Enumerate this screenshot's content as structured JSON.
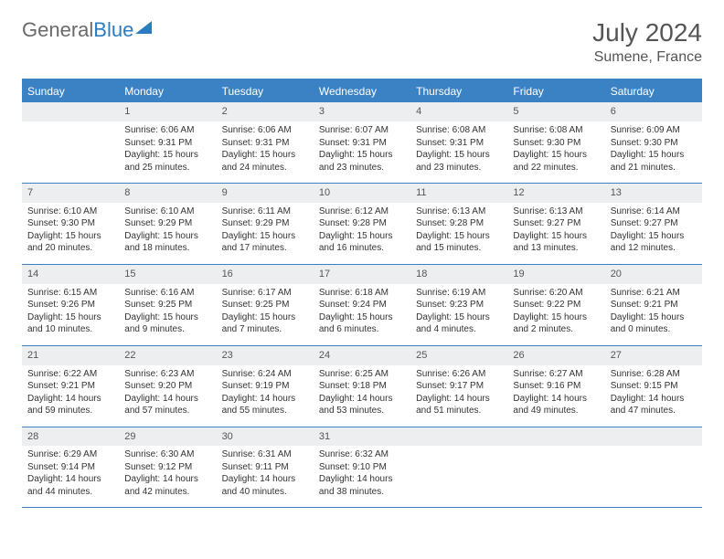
{
  "brand": {
    "part1": "General",
    "part2": "Blue"
  },
  "title": "July 2024",
  "location": "Sumene, France",
  "dayHeaders": [
    "Sunday",
    "Monday",
    "Tuesday",
    "Wednesday",
    "Thursday",
    "Friday",
    "Saturday"
  ],
  "colors": {
    "accent": "#3b82c4",
    "headerBg": "#3b82c4",
    "dayStrip": "#eceef0",
    "text": "#333333",
    "titleText": "#555555"
  },
  "weeks": [
    [
      {
        "n": "",
        "sr": "",
        "ss": "",
        "dl": ""
      },
      {
        "n": "1",
        "sr": "Sunrise: 6:06 AM",
        "ss": "Sunset: 9:31 PM",
        "dl": "Daylight: 15 hours and 25 minutes."
      },
      {
        "n": "2",
        "sr": "Sunrise: 6:06 AM",
        "ss": "Sunset: 9:31 PM",
        "dl": "Daylight: 15 hours and 24 minutes."
      },
      {
        "n": "3",
        "sr": "Sunrise: 6:07 AM",
        "ss": "Sunset: 9:31 PM",
        "dl": "Daylight: 15 hours and 23 minutes."
      },
      {
        "n": "4",
        "sr": "Sunrise: 6:08 AM",
        "ss": "Sunset: 9:31 PM",
        "dl": "Daylight: 15 hours and 23 minutes."
      },
      {
        "n": "5",
        "sr": "Sunrise: 6:08 AM",
        "ss": "Sunset: 9:30 PM",
        "dl": "Daylight: 15 hours and 22 minutes."
      },
      {
        "n": "6",
        "sr": "Sunrise: 6:09 AM",
        "ss": "Sunset: 9:30 PM",
        "dl": "Daylight: 15 hours and 21 minutes."
      }
    ],
    [
      {
        "n": "7",
        "sr": "Sunrise: 6:10 AM",
        "ss": "Sunset: 9:30 PM",
        "dl": "Daylight: 15 hours and 20 minutes."
      },
      {
        "n": "8",
        "sr": "Sunrise: 6:10 AM",
        "ss": "Sunset: 9:29 PM",
        "dl": "Daylight: 15 hours and 18 minutes."
      },
      {
        "n": "9",
        "sr": "Sunrise: 6:11 AM",
        "ss": "Sunset: 9:29 PM",
        "dl": "Daylight: 15 hours and 17 minutes."
      },
      {
        "n": "10",
        "sr": "Sunrise: 6:12 AM",
        "ss": "Sunset: 9:28 PM",
        "dl": "Daylight: 15 hours and 16 minutes."
      },
      {
        "n": "11",
        "sr": "Sunrise: 6:13 AM",
        "ss": "Sunset: 9:28 PM",
        "dl": "Daylight: 15 hours and 15 minutes."
      },
      {
        "n": "12",
        "sr": "Sunrise: 6:13 AM",
        "ss": "Sunset: 9:27 PM",
        "dl": "Daylight: 15 hours and 13 minutes."
      },
      {
        "n": "13",
        "sr": "Sunrise: 6:14 AM",
        "ss": "Sunset: 9:27 PM",
        "dl": "Daylight: 15 hours and 12 minutes."
      }
    ],
    [
      {
        "n": "14",
        "sr": "Sunrise: 6:15 AM",
        "ss": "Sunset: 9:26 PM",
        "dl": "Daylight: 15 hours and 10 minutes."
      },
      {
        "n": "15",
        "sr": "Sunrise: 6:16 AM",
        "ss": "Sunset: 9:25 PM",
        "dl": "Daylight: 15 hours and 9 minutes."
      },
      {
        "n": "16",
        "sr": "Sunrise: 6:17 AM",
        "ss": "Sunset: 9:25 PM",
        "dl": "Daylight: 15 hours and 7 minutes."
      },
      {
        "n": "17",
        "sr": "Sunrise: 6:18 AM",
        "ss": "Sunset: 9:24 PM",
        "dl": "Daylight: 15 hours and 6 minutes."
      },
      {
        "n": "18",
        "sr": "Sunrise: 6:19 AM",
        "ss": "Sunset: 9:23 PM",
        "dl": "Daylight: 15 hours and 4 minutes."
      },
      {
        "n": "19",
        "sr": "Sunrise: 6:20 AM",
        "ss": "Sunset: 9:22 PM",
        "dl": "Daylight: 15 hours and 2 minutes."
      },
      {
        "n": "20",
        "sr": "Sunrise: 6:21 AM",
        "ss": "Sunset: 9:21 PM",
        "dl": "Daylight: 15 hours and 0 minutes."
      }
    ],
    [
      {
        "n": "21",
        "sr": "Sunrise: 6:22 AM",
        "ss": "Sunset: 9:21 PM",
        "dl": "Daylight: 14 hours and 59 minutes."
      },
      {
        "n": "22",
        "sr": "Sunrise: 6:23 AM",
        "ss": "Sunset: 9:20 PM",
        "dl": "Daylight: 14 hours and 57 minutes."
      },
      {
        "n": "23",
        "sr": "Sunrise: 6:24 AM",
        "ss": "Sunset: 9:19 PM",
        "dl": "Daylight: 14 hours and 55 minutes."
      },
      {
        "n": "24",
        "sr": "Sunrise: 6:25 AM",
        "ss": "Sunset: 9:18 PM",
        "dl": "Daylight: 14 hours and 53 minutes."
      },
      {
        "n": "25",
        "sr": "Sunrise: 6:26 AM",
        "ss": "Sunset: 9:17 PM",
        "dl": "Daylight: 14 hours and 51 minutes."
      },
      {
        "n": "26",
        "sr": "Sunrise: 6:27 AM",
        "ss": "Sunset: 9:16 PM",
        "dl": "Daylight: 14 hours and 49 minutes."
      },
      {
        "n": "27",
        "sr": "Sunrise: 6:28 AM",
        "ss": "Sunset: 9:15 PM",
        "dl": "Daylight: 14 hours and 47 minutes."
      }
    ],
    [
      {
        "n": "28",
        "sr": "Sunrise: 6:29 AM",
        "ss": "Sunset: 9:14 PM",
        "dl": "Daylight: 14 hours and 44 minutes."
      },
      {
        "n": "29",
        "sr": "Sunrise: 6:30 AM",
        "ss": "Sunset: 9:12 PM",
        "dl": "Daylight: 14 hours and 42 minutes."
      },
      {
        "n": "30",
        "sr": "Sunrise: 6:31 AM",
        "ss": "Sunset: 9:11 PM",
        "dl": "Daylight: 14 hours and 40 minutes."
      },
      {
        "n": "31",
        "sr": "Sunrise: 6:32 AM",
        "ss": "Sunset: 9:10 PM",
        "dl": "Daylight: 14 hours and 38 minutes."
      },
      {
        "n": "",
        "sr": "",
        "ss": "",
        "dl": ""
      },
      {
        "n": "",
        "sr": "",
        "ss": "",
        "dl": ""
      },
      {
        "n": "",
        "sr": "",
        "ss": "",
        "dl": ""
      }
    ]
  ]
}
